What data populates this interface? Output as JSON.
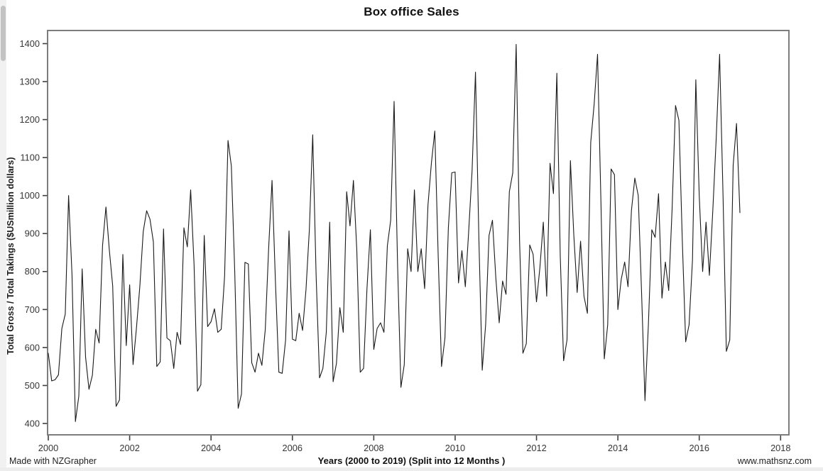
{
  "header": {
    "title": "Box office Sales"
  },
  "footer": {
    "made_with": "Made with NZGrapher",
    "website": "www.mathsnz.com"
  },
  "colors": {
    "line": "#1a1a1a",
    "frame": "#7d7d7d",
    "tick": "#3f3f3f",
    "tick_label": "#363636",
    "background": "#ffffff",
    "scroll_track": "#f1f1f1",
    "scroll_thumb": "#c3c3c3"
  },
  "chart_data": {
    "type": "line",
    "title": "Box office Sales",
    "xlabel": "Years (2000 to 2019) (Split into 12 Months )",
    "ylabel": "Total Gross / Total Takings ($USmillion dollars)",
    "x_unit": "month",
    "x_start": "Jan 2000",
    "x_end": "Jan 2017",
    "x_ticks": [
      2000,
      2002,
      2004,
      2006,
      2008,
      2010,
      2012,
      2014,
      2016,
      2018
    ],
    "y_ticks": [
      400,
      500,
      600,
      700,
      800,
      900,
      1000,
      1100,
      1200,
      1300,
      1400
    ],
    "ylim": [
      400,
      1400
    ],
    "grid": false,
    "legend": false,
    "series_name": "Total Gross / Total Takings ($USmillion)",
    "values": [
      585,
      512,
      515,
      528,
      650,
      688,
      1000,
      792,
      405,
      472,
      807,
      575,
      490,
      527,
      648,
      612,
      868,
      970,
      858,
      762,
      445,
      462,
      845,
      605,
      765,
      555,
      650,
      760,
      905,
      960,
      938,
      878,
      550,
      562,
      912,
      625,
      618,
      545,
      640,
      608,
      915,
      865,
      1015,
      818,
      485,
      502,
      895,
      655,
      668,
      702,
      640,
      648,
      788,
      1145,
      1078,
      798,
      440,
      478,
      824,
      820,
      560,
      535,
      585,
      553,
      648,
      860,
      1040,
      772,
      535,
      532,
      620,
      907,
      622,
      618,
      690,
      645,
      752,
      908,
      1160,
      788,
      520,
      545,
      640,
      930,
      510,
      558,
      705,
      640,
      1010,
      920,
      1040,
      855,
      535,
      545,
      755,
      910,
      595,
      650,
      665,
      640,
      868,
      935,
      1248,
      825,
      495,
      555,
      860,
      800,
      1015,
      800,
      860,
      755,
      975,
      1085,
      1170,
      840,
      550,
      625,
      915,
      1060,
      1062,
      770,
      855,
      760,
      905,
      1065,
      1325,
      885,
      540,
      660,
      895,
      935,
      785,
      665,
      775,
      740,
      1010,
      1060,
      1398,
      880,
      585,
      610,
      870,
      845,
      720,
      810,
      930,
      735,
      1085,
      1005,
      1322,
      840,
      565,
      620,
      1092,
      895,
      745,
      880,
      735,
      690,
      1140,
      1240,
      1372,
      990,
      570,
      660,
      1070,
      1055,
      700,
      780,
      825,
      760,
      960,
      1046,
      1000,
      745,
      460,
      660,
      910,
      890,
      1005,
      730,
      825,
      750,
      965,
      1237,
      1198,
      885,
      615,
      660,
      830,
      1305,
      1000,
      800,
      930,
      790,
      960,
      1150,
      1372,
      1010,
      590,
      620,
      1080,
      1190,
      955
    ]
  }
}
